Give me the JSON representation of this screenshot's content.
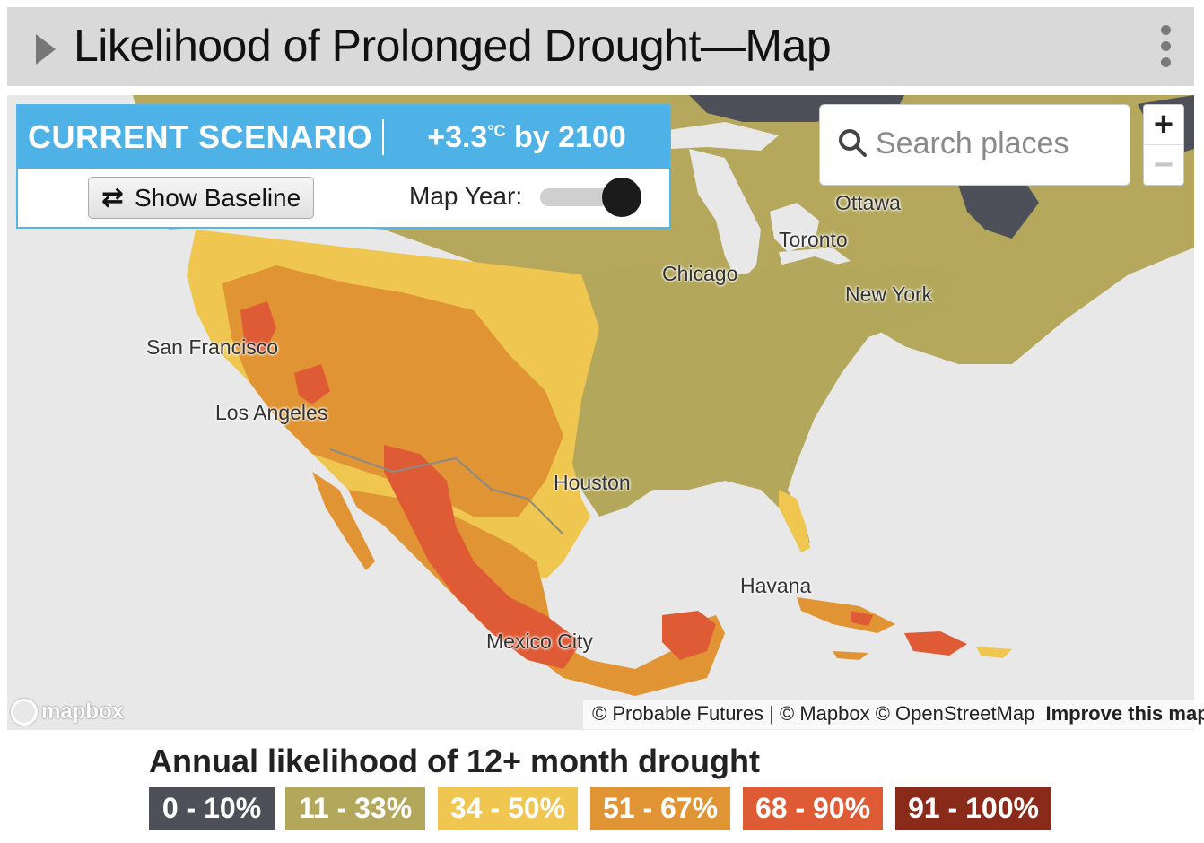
{
  "header": {
    "title": "Likelihood of Prolonged Drought—Map",
    "menu_icon": "kebab-icon",
    "expand_icon": "caret-right-icon"
  },
  "scenario": {
    "label": "CURRENT SCENARIO",
    "warming": "+3.3",
    "unit": "°C",
    "by_word": "by",
    "year": "2100",
    "baseline_button": "Show Baseline",
    "map_year_label": "Map Year:",
    "map_year_slider_value": 1.0
  },
  "search": {
    "placeholder": "Search places"
  },
  "zoom": {
    "in_label": "+",
    "out_label": "−"
  },
  "cities": {
    "ottawa": "Ottawa",
    "toronto": "Toronto",
    "chicago": "Chicago",
    "new_york": "New York",
    "san_francisco": "San Francisco",
    "los_angeles": "Los Angeles",
    "houston": "Houston",
    "havana": "Havana",
    "mexico_city": "Mexico City"
  },
  "attribution": {
    "logo": "mapbox",
    "text": "© Probable Futures | © Mapbox © OpenStreetMap",
    "improve": "Improve this map"
  },
  "legend": {
    "title": "Annual likelihood of 12+ month drought",
    "items": [
      {
        "label": "0 - 10%",
        "color": "#4d5059"
      },
      {
        "label": "11 - 33%",
        "color": "#b3a75b"
      },
      {
        "label": "34 - 50%",
        "color": "#efc64f"
      },
      {
        "label": "51 - 67%",
        "color": "#e09433"
      },
      {
        "label": "68 - 90%",
        "color": "#df5b36"
      },
      {
        "label": "91 - 100%",
        "color": "#8a2a1a"
      }
    ]
  }
}
